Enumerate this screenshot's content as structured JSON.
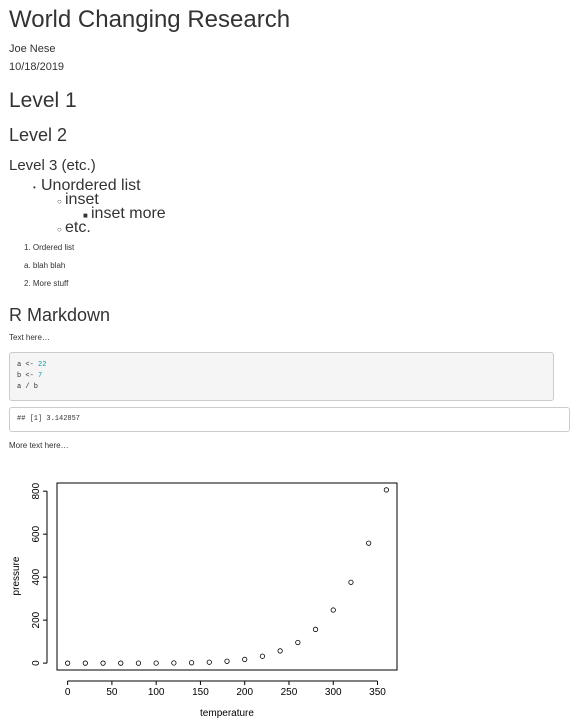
{
  "header": {
    "title": "World Changing Research",
    "author": "Joe Nese",
    "date": "10/18/2019"
  },
  "headings": {
    "level1": "Level 1",
    "level2": "Level 2",
    "level3": "Level 3 (etc.)",
    "rmarkdown": "R Markdown"
  },
  "unordered_list": {
    "item1": "Unordered list",
    "item1_sub1": "inset",
    "item1_sub1_sub1": "inset more",
    "item1_sub2": "etc."
  },
  "ordered_list": {
    "item1": "1. Ordered list",
    "item1a": "a. blah blah",
    "item2": "2. More stuff"
  },
  "body_text": {
    "text_here": "Text here…",
    "more_text_here": "More text here…"
  },
  "code_chunk": {
    "line1_code": "a <- ",
    "line1_value": "22",
    "line2_code": "b <- ",
    "line2_value": "7",
    "line3_code": "a / b"
  },
  "code_output": "## [1] 3.142857",
  "chart_data": {
    "type": "scatter",
    "xlabel": "temperature",
    "ylabel": "pressure",
    "xlim": [
      -12,
      372
    ],
    "ylim": [
      -32,
      838
    ],
    "x_ticks": [
      0,
      50,
      100,
      150,
      200,
      250,
      300,
      350
    ],
    "y_ticks": [
      0,
      200,
      400,
      600,
      800
    ],
    "x": [
      0,
      20,
      40,
      60,
      80,
      100,
      120,
      140,
      160,
      180,
      200,
      220,
      240,
      260,
      280,
      300,
      320,
      340,
      360
    ],
    "y": [
      0.0002,
      0.0012,
      0.006,
      0.03,
      0.09,
      0.27,
      0.75,
      1.85,
      4.2,
      8.8,
      17.3,
      32.1,
      57,
      96,
      157,
      247,
      376,
      558,
      806
    ],
    "grid": false
  }
}
